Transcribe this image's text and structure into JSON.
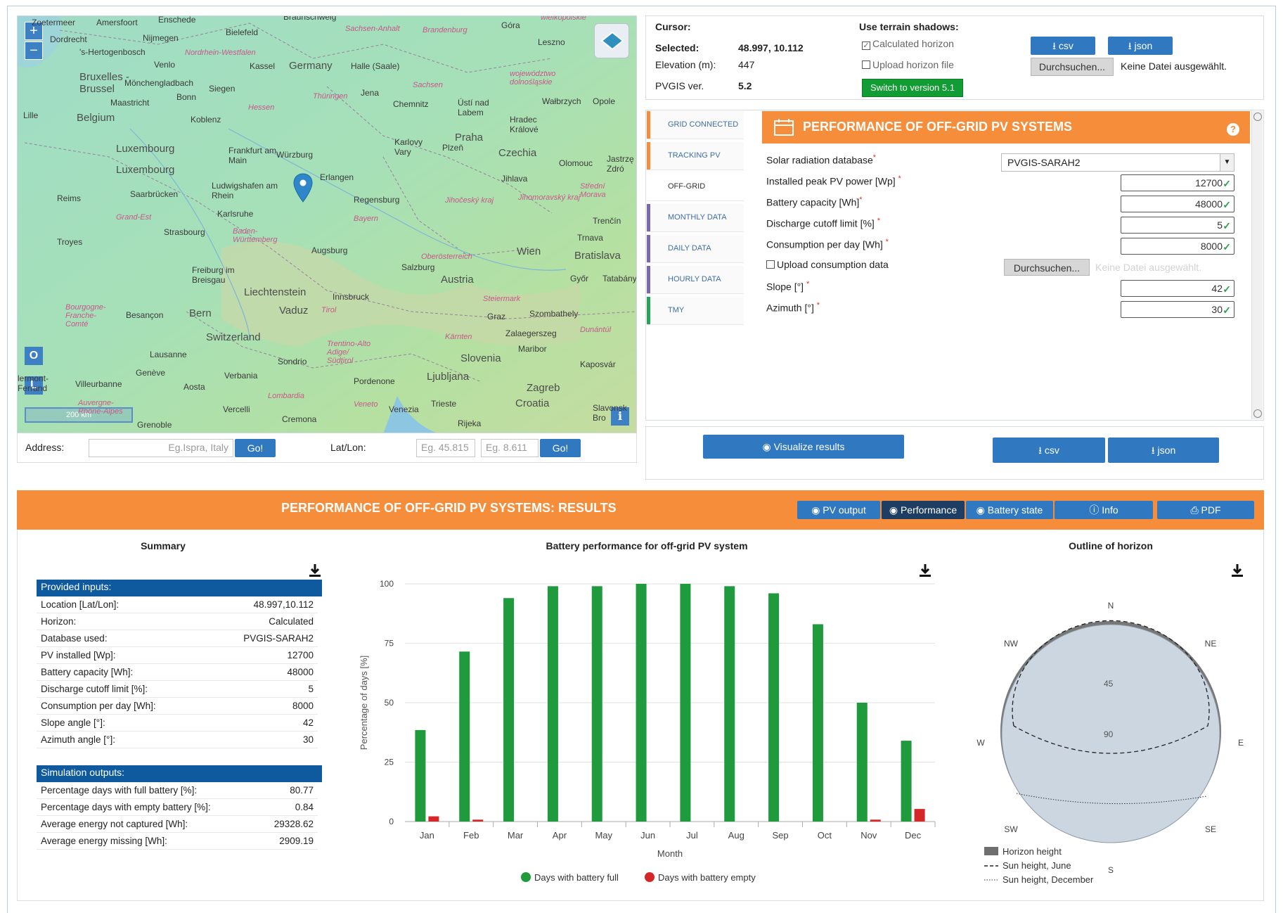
{
  "map": {
    "zoom_in": "+",
    "zoom_out": "−",
    "btn_o": "O",
    "btn_l": "L",
    "scale": "200 km",
    "info": "i",
    "labels": {
      "l_zoetermeer": "Zoetermeer",
      "l_amersfoort": "Amersfoort",
      "l_enschede": "Enschede",
      "l_braunschweig": "Braunschweig",
      "l_gora": "Góra",
      "l_dordrecht": "Dordrecht",
      "l_nijmegen": "Nijmegen",
      "l_bielefeld": "Bielefeld",
      "l_sachsen_anhalt": "Sachsen-Anhalt",
      "l_brandenburg": "Brandenburg",
      "l_leszno": "Leszno",
      "l_wielkopolskie": "wielkopolskie",
      "l_hertogenbosch": "'s-Hertogenbosch",
      "l_venlo": "Venlo",
      "l_nrw": "Nordrhein-Westfalen",
      "l_kassel": "Kassel",
      "l_germany": "Germany",
      "l_halle": "Halle (Saale)",
      "l_bruxelles": "Bruxelles - Brussel",
      "l_mgladbach": "Mönchengladbach",
      "l_siegen": "Siegen",
      "l_jena": "Jena",
      "l_sachsen": "Sachsen",
      "l_dolnoslaskie": "województwo dolnośląskie",
      "l_maastricht": "Maastricht",
      "l_bonn": "Bonn",
      "l_thuringen": "Thüringen",
      "l_chemnitz": "Chemnitz",
      "l_usti": "Ústí nad Labem",
      "l_walbrzych": "Wałbrzych",
      "l_opole": "Opole",
      "l_lille": "Lille",
      "l_belgium": "Belgium",
      "l_koblenz": "Koblenz",
      "l_hessen": "Hessen",
      "l_hradec": "Hradec Králové",
      "l_frankfurt": "Frankfurt am Main",
      "l_wurzburg": "Würzburg",
      "l_karlovy": "Karlovy Vary",
      "l_praha": "Praha",
      "l_luxembourg1": "Luxembourg",
      "l_luxembourg2": "Luxembourg",
      "l_plzen": "Plzeň",
      "l_czechia": "Czechia",
      "l_olomouc": "Olomouc",
      "l_jastrzebie": "Jastrzę Zdró",
      "l_erlangen": "Erlangen",
      "l_ludwigshafen": "Ludwigshafen am Rhein",
      "l_jihlava": "Jihlava",
      "l_reims": "Reims",
      "l_saarbrucken": "Saarbrücken",
      "l_regensburg": "Regensburg",
      "l_jihocesky": "Jihočeský kraj",
      "l_jihomoravsky": "Jihomoravský kraj",
      "l_stredni": "Střední Morava",
      "l_karlsruhe": "Karlsruhe",
      "l_bayern": "Bayern",
      "l_grand_est": "Grand-Est",
      "l_trencin": "Trenčín",
      "l_strasbourg": "Strasbourg",
      "l_bw": "Baden-Württemberg",
      "l_troyes": "Troyes",
      "l_augsburg": "Augsburg",
      "l_trnava": "Trnava",
      "l_oberosterreich": "Oberösterreich",
      "l_wien": "Wien",
      "l_bratislava": "Bratislava",
      "l_salzburg": "Salzburg",
      "l_freiburg": "Freiburg im Breisgau",
      "l_austria": "Austria",
      "l_gyor": "Győr",
      "l_tatabanya": "Tatabány",
      "l_liechtenstein": "Liechtenstein",
      "l_innsbruck": "Innsbruck",
      "l_steiermark": "Steiermark",
      "l_bourgogne": "Bourgogne-Franche-Comté",
      "l_besancon": "Besançon",
      "l_bern": "Bern",
      "l_vaduz": "Vaduz",
      "l_tirol": "Tirol",
      "l_graz": "Graz",
      "l_szombathely": "Szombathely",
      "l_switzerland": "Switzerland",
      "l_zalaegerszeg": "Zalaegerszeg",
      "l_dunantul": "Dunántúl",
      "l_trentino": "Trentino-Alto Adige/ Südtirol",
      "l_karnten": "Kärnten",
      "l_maribor": "Maribor",
      "l_lausanne": "Lausanne",
      "l_sondrio": "Sondrio",
      "l_slovenia": "Slovenia",
      "l_kaposvar": "Kaposvár",
      "l_geneve": "Genève",
      "l_verbania": "Verbania",
      "l_ljubljana": "Ljubljana",
      "l_villeurbanne": "Villeurbanne",
      "l_aosta": "Aosta",
      "l_pordenone": "Pordenone",
      "l_zagreb": "Zagreb",
      "l_lombardia": "Lombardia",
      "l_auvergne": "Auvergne-Rhône-Alpes",
      "l_vercelli": "Vercelli",
      "l_veneto": "Veneto",
      "l_venezia": "Venezia",
      "l_trieste": "Trieste",
      "l_croatia": "Croatia",
      "l_grenoble": "Grenoble",
      "l_cremona": "Cremona",
      "l_rijeka": "Rijeka",
      "l_slavonski": "Slavonsk Bro",
      "l_clermont": "lermont-Ferrand"
    }
  },
  "address_bar": {
    "address_label": "Address:",
    "address_placeholder": "Eg.Ispra, Italy",
    "go1": "Go!",
    "latlon_label": "Lat/Lon:",
    "lat_placeholder": "Eg. 45.815",
    "lon_placeholder": "Eg. 8.611",
    "go2": "Go!"
  },
  "cursor_panel": {
    "cursor_label": "Cursor:",
    "selected_label": "Selected:",
    "selected_value": "48.997, 10.112",
    "elevation_label": "Elevation (m):",
    "elevation_value": "447",
    "pvgis_label": "PVGIS ver.",
    "pvgis_value": "5.2",
    "terrain_title": "Use terrain shadows:",
    "calculated_horizon": "Calculated horizon",
    "upload_horizon": "Upload horizon file",
    "switch_version": "Switch to version 5.1",
    "csv": "csv",
    "json": "json",
    "browse": "Durchsuchen...",
    "no_file": "Keine Datei ausgewählt."
  },
  "side_tabs": [
    {
      "label": "GRID CONNECTED",
      "color": "#f58d3a"
    },
    {
      "label": "TRACKING PV",
      "color": "#f58d3a"
    },
    {
      "label": "OFF-GRID",
      "color": "#f58d3a"
    },
    {
      "label": "MONTHLY DATA",
      "color": "#7a68b0"
    },
    {
      "label": "DAILY DATA",
      "color": "#7a68b0"
    },
    {
      "label": "HOURLY DATA",
      "color": "#7a68b0"
    },
    {
      "label": "TMY",
      "color": "#29a35a"
    }
  ],
  "form": {
    "title": "PERFORMANCE OF OFF-GRID PV SYSTEMS",
    "help": "?",
    "db_label": "Solar radiation database",
    "db_value": "PVGIS-SARAH2",
    "peak_label": "Installed peak PV power [Wp]",
    "peak_value": "12700",
    "battery_label": "Battery capacity [Wh]",
    "battery_value": "48000",
    "cutoff_label": "Discharge cutoff limit [%]",
    "cutoff_value": "5",
    "consumption_label": "Consumption per day [Wh]",
    "consumption_value": "8000",
    "upload_consumption": "Upload consumption data",
    "browse": "Durchsuchen...",
    "no_file": "Keine Datei ausgewählt.",
    "slope_label": "Slope [°]",
    "slope_value": "42",
    "azimuth_label": "Azimuth [°]",
    "azimuth_value": "30",
    "req": "*",
    "tick": "✓"
  },
  "actions": {
    "visualize": "Visualize results",
    "csv": "csv",
    "json": "json"
  },
  "results": {
    "title": "PERFORMANCE OF OFF-GRID PV SYSTEMS: RESULTS",
    "tabs": [
      "PV output",
      "Performance",
      "Battery state",
      "Info",
      "PDF"
    ],
    "summary_title": "Summary",
    "provided_inputs": "Provided inputs:",
    "inputs": [
      {
        "label": "Location [Lat/Lon]:",
        "value": "48.997,10.112"
      },
      {
        "label": "Horizon:",
        "value": "Calculated"
      },
      {
        "label": "Database used:",
        "value": "PVGIS-SARAH2"
      },
      {
        "label": "PV installed [Wp]:",
        "value": "12700"
      },
      {
        "label": "Battery capacity [Wh]:",
        "value": "48000"
      },
      {
        "label": "Discharge cutoff limit [%]:",
        "value": "5"
      },
      {
        "label": "Consumption per day [Wh]:",
        "value": "8000"
      },
      {
        "label": "Slope angle [°]:",
        "value": "42"
      },
      {
        "label": "Azimuth angle [°]:",
        "value": "30"
      }
    ],
    "simulation_outputs": "Simulation outputs:",
    "outputs": [
      {
        "label": "Percentage days with full battery [%]:",
        "value": "80.77"
      },
      {
        "label": "Percentage days with empty battery [%]:",
        "value": "0.84"
      },
      {
        "label": "Average energy not captured [Wh]:",
        "value": "29328.62"
      },
      {
        "label": "Average energy missing [Wh]:",
        "value": "2909.19"
      }
    ],
    "chart_title": "Battery performance for off-grid PV system",
    "horizon_title": "Outline of horizon"
  },
  "chart_data": [
    {
      "type": "bar",
      "title": "Battery performance for off-grid PV system",
      "xlabel": "Month",
      "ylabel": "Percentage of days [%]",
      "categories": [
        "Jan",
        "Feb",
        "Mar",
        "Apr",
        "May",
        "Jun",
        "Jul",
        "Aug",
        "Sep",
        "Oct",
        "Nov",
        "Dec"
      ],
      "yticks": [
        "0",
        "25",
        "50",
        "75",
        "100"
      ],
      "ylim": [
        0,
        100
      ],
      "grid": true,
      "legend": "bottom",
      "series": [
        {
          "name": "Days with battery full",
          "color": "#1f9a3d",
          "values": [
            38.5,
            71.5,
            94,
            99,
            99,
            100,
            100,
            99,
            96,
            83,
            50,
            34
          ]
        },
        {
          "name": "Days with battery empty",
          "color": "#d62728",
          "values": [
            2.2,
            0.8,
            0,
            0,
            0,
            0,
            0,
            0,
            0,
            0,
            0.8,
            5.3
          ]
        }
      ]
    },
    {
      "type": "polar",
      "title": "Outline of horizon",
      "directions": [
        "N",
        "NE",
        "E",
        "SE",
        "S",
        "SW",
        "W",
        "NW"
      ],
      "rings": [
        "45",
        "90"
      ],
      "legend": "bottom-left",
      "series": [
        {
          "name": "Horizon height",
          "color": "#6f6f6f"
        },
        {
          "name": "Sun height, June",
          "style": "dashed"
        },
        {
          "name": "Sun height, December",
          "style": "dotted"
        }
      ]
    }
  ]
}
